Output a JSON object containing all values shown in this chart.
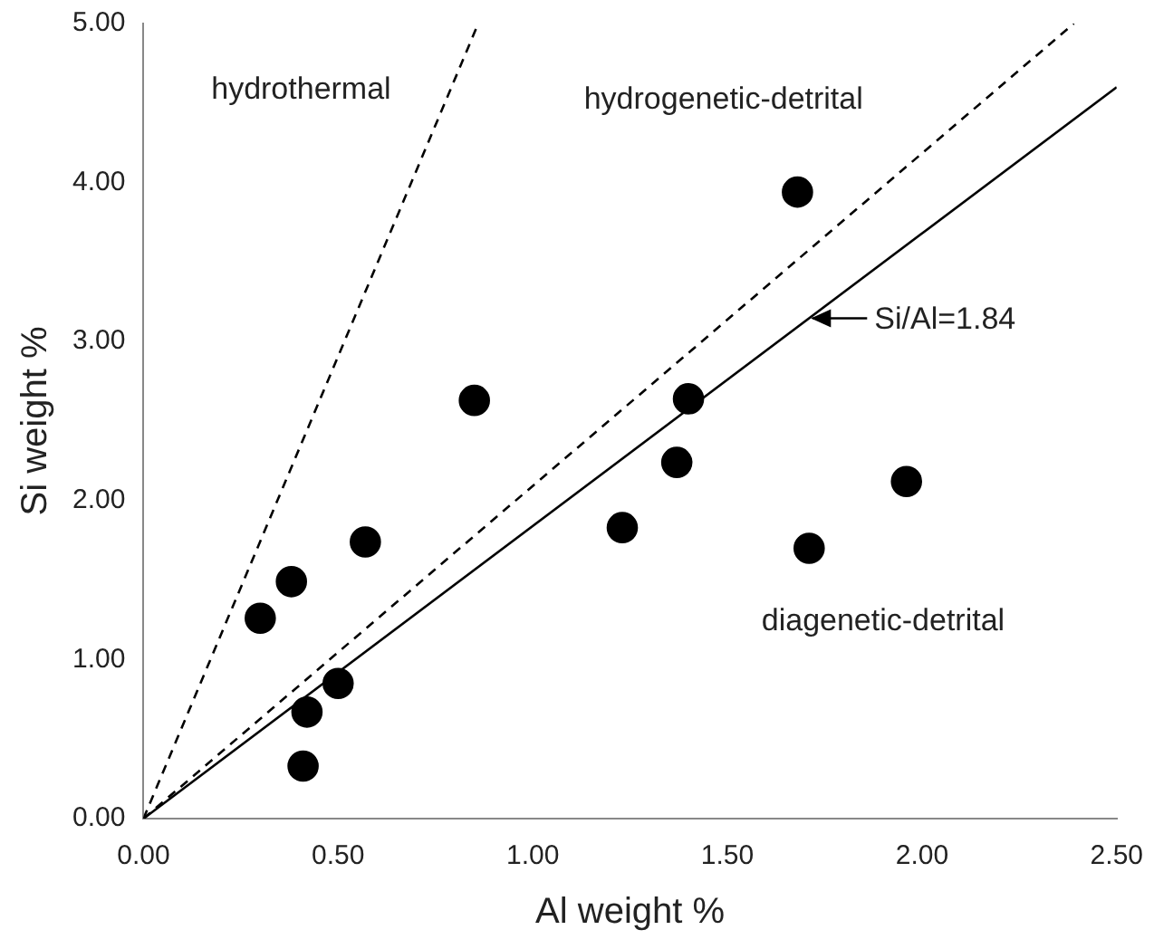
{
  "chart_data": {
    "type": "scatter",
    "xlabel": "Al weight %",
    "ylabel": "Si weight %",
    "xlim": [
      0,
      2.5
    ],
    "ylim": [
      0,
      5
    ],
    "xticks": [
      {
        "value": 0,
        "label": "0.00"
      },
      {
        "value": 0.5,
        "label": "0.50"
      },
      {
        "value": 1,
        "label": "1.00"
      },
      {
        "value": 1.5,
        "label": "1.50"
      },
      {
        "value": 2,
        "label": "2.00"
      },
      {
        "value": 2.5,
        "label": "2.50"
      }
    ],
    "yticks": [
      {
        "value": 0,
        "label": "0.00"
      },
      {
        "value": 1,
        "label": "1.00"
      },
      {
        "value": 2,
        "label": "2.00"
      },
      {
        "value": 3,
        "label": "3.00"
      },
      {
        "value": 4,
        "label": "4.00"
      },
      {
        "value": 5,
        "label": "5.00"
      }
    ],
    "grid": false,
    "series": [
      {
        "color": "#000000",
        "marker": "circle",
        "x": [
          0.3,
          0.38,
          0.57,
          0.5,
          0.42,
          0.41,
          0.85,
          1.23,
          1.68,
          1.4,
          1.37,
          1.96,
          1.71
        ],
        "values": [
          1.26,
          1.49,
          1.74,
          0.85,
          0.67,
          0.33,
          2.63,
          1.83,
          3.94,
          2.64,
          2.24,
          2.12,
          1.7
        ]
      },
      {
        "type": "line",
        "color": "#000000",
        "marker": "none",
        "line_style": "dashed",
        "x": [
          0,
          0.86
        ],
        "values": [
          0,
          5
        ]
      },
      {
        "type": "line",
        "color": "#000000",
        "marker": "none",
        "line_style": "dashed",
        "x": [
          0,
          2.39
        ],
        "values": [
          0,
          5
        ]
      },
      {
        "type": "line",
        "name": "Si/Al=1.84",
        "color": "#000000",
        "marker": "none",
        "line_style": "solid",
        "x": [
          0,
          2.5
        ],
        "values": [
          0,
          4.6
        ]
      }
    ],
    "annotations": [
      "hydrothermal",
      "hydrogenetic-detrital",
      "diagenetic-detrital"
    ]
  }
}
